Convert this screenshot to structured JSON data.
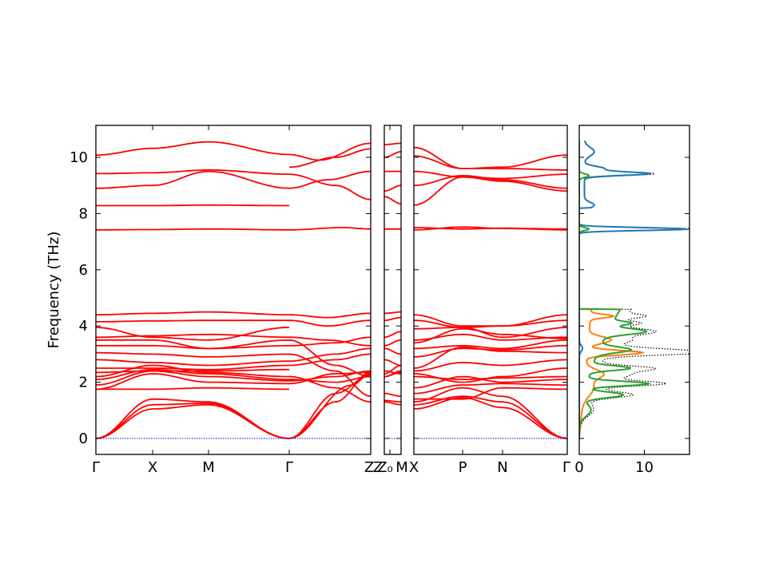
{
  "chart_data": [
    {
      "type": "line",
      "title": "",
      "ylabel": "Frequency (THz)",
      "ylim": [
        -0.55,
        11.2
      ],
      "yticks": [
        0,
        2,
        4,
        6,
        8,
        10
      ],
      "grid": false,
      "colors": {
        "bands": "#ff0000",
        "zero_line": "#0000ff"
      },
      "panels": [
        {
          "labels": [
            "Γ",
            "X",
            "M",
            "Γ",
            "Z"
          ],
          "positions": [
            0,
            1,
            2,
            3.5,
            4.85
          ]
        },
        {
          "labels": [
            "Z",
            "Z₀",
            "M"
          ],
          "positions": [
            0,
            0.35,
            1
          ]
        },
        {
          "labels": [
            "X",
            "P",
            "N",
            "Γ"
          ],
          "positions": [
            0,
            1.1,
            1.9,
            3.1
          ]
        }
      ],
      "tick_labels": {
        "gamma": "Γ",
        "x": "X",
        "m": "M",
        "z": "Z",
        "z0": "Z₀",
        "p": "P",
        "n": "N"
      },
      "note": "",
      "series": [
        {
          "type": "optical",
          "values_at_gamma": [
            10.1,
            9.7,
            9.4,
            8.9,
            8.3,
            7.45
          ]
        },
        {
          "type": "mid",
          "values_at_gamma": [
            4.4,
            4.2,
            3.95,
            3.6,
            3.5,
            3.3,
            3.1,
            2.9,
            2.6,
            2.4,
            2.2,
            2.0
          ]
        },
        {
          "type": "acoustic",
          "values_at_gamma": [
            0,
            0,
            0
          ]
        }
      ]
    },
    {
      "type": "line",
      "title": "",
      "xlabel": "",
      "xlim": [
        0,
        17
      ],
      "xticks": [
        0,
        10
      ],
      "ylim": [
        -0.55,
        11.2
      ],
      "series_colors": [
        "#1f77b4",
        "#ff7f0e",
        "#2ca02c",
        "#000000"
      ],
      "series_styles": [
        "solid",
        "solid",
        "solid",
        "dotted"
      ]
    }
  ]
}
